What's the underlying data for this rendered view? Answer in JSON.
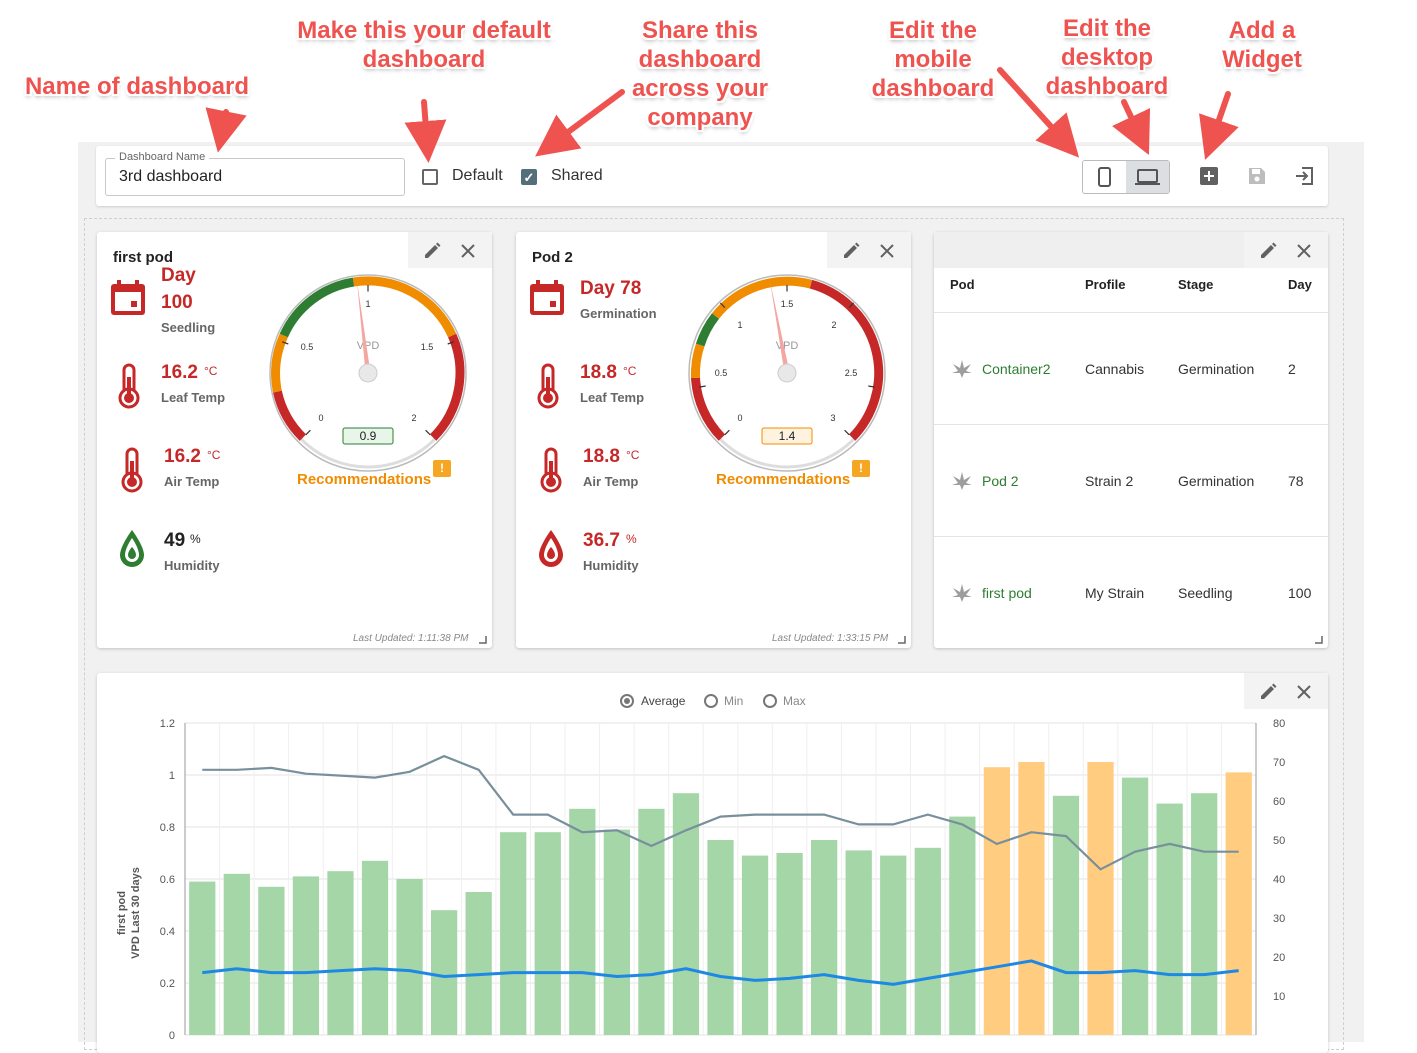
{
  "annotations": {
    "name_of_dashboard": "Name of dashboard",
    "make_default": [
      "Make this your default",
      "dashboard"
    ],
    "share": [
      "Share this",
      "dashboard",
      "across your",
      "company"
    ],
    "edit_mobile": [
      "Edit the",
      "mobile",
      "dashboard"
    ],
    "edit_desktop": [
      "Edit the",
      "desktop",
      "dashboard"
    ],
    "add_widget": [
      "Add a",
      "Widget"
    ]
  },
  "toolbar": {
    "name_label": "Dashboard Name",
    "name_value": "3rd dashboard",
    "default_label": "Default",
    "default_checked": false,
    "shared_label": "Shared",
    "shared_checked": true
  },
  "pods": [
    {
      "title": "first pod",
      "day_label": "Day",
      "day_value": "100",
      "stage": "Seedling",
      "leaf_temp": "16.2",
      "leaf_unit": "°C",
      "leaf_label": "Leaf Temp",
      "air_temp": "16.2",
      "air_unit": "°C",
      "air_label": "Air Temp",
      "humidity": "49",
      "hum_unit": "%",
      "hum_label": "Humidity",
      "gauge_center_label": "VPD",
      "gauge_ticks": [
        "0",
        "0.5",
        "1",
        "1.5",
        "2"
      ],
      "gauge_value": "0.9",
      "recommendations": "Recommendations",
      "updated": "Last Updated: 1:11:38 PM"
    },
    {
      "title": "Pod 2",
      "day_label": "Day 78",
      "stage": "Germination",
      "leaf_temp": "18.8",
      "leaf_unit": "°C",
      "leaf_label": "Leaf Temp",
      "air_temp": "18.8",
      "air_unit": "°C",
      "air_label": "Air Temp",
      "humidity": "36.7",
      "hum_unit": "%",
      "hum_label": "Humidity",
      "gauge_center_label": "VPD",
      "gauge_ticks": [
        "0",
        "0.5",
        "1",
        "1.5",
        "2",
        "2.5",
        "3"
      ],
      "gauge_value": "1.4",
      "recommendations": "Recommendations",
      "updated": "Last Updated: 1:33:15 PM"
    }
  ],
  "table": {
    "headers": [
      "Pod",
      "Profile",
      "Stage",
      "Day"
    ],
    "rows": [
      [
        "Container2",
        "Cannabis",
        "Germination",
        "2"
      ],
      [
        "Pod 2",
        "Strain 2",
        "Germination",
        "78"
      ],
      [
        "first pod",
        "My Strain",
        "Seedling",
        "100"
      ]
    ]
  },
  "chart_options": {
    "average": "Average",
    "min": "Min",
    "max": "Max",
    "selected": "Average"
  },
  "chart_data": {
    "type": "bar",
    "ylabel": [
      "first pod",
      "VPD Last 30 days"
    ],
    "ylim": [
      0,
      1.2
    ],
    "y_ticks": [
      "0",
      "0.2",
      "0.4",
      "0.6",
      "0.8",
      "1",
      "1.2"
    ],
    "y2lim": [
      0,
      80
    ],
    "y2_ticks": [
      "10",
      "20",
      "30",
      "40",
      "50",
      "60",
      "70",
      "80"
    ],
    "grid": true,
    "bars": [
      0.59,
      0.62,
      0.57,
      0.61,
      0.63,
      0.67,
      0.6,
      0.48,
      0.55,
      0.78,
      0.78,
      0.87,
      0.79,
      0.87,
      0.93,
      0.75,
      0.69,
      0.7,
      0.75,
      0.71,
      0.69,
      0.72,
      0.84,
      1.03,
      1.05,
      0.92,
      1.05,
      0.99,
      0.89,
      0.93,
      1.01
    ],
    "bar_colors": [
      "#a5d6a7",
      "#a5d6a7",
      "#a5d6a7",
      "#a5d6a7",
      "#a5d6a7",
      "#a5d6a7",
      "#a5d6a7",
      "#a5d6a7",
      "#a5d6a7",
      "#a5d6a7",
      "#a5d6a7",
      "#a5d6a7",
      "#a5d6a7",
      "#a5d6a7",
      "#a5d6a7",
      "#a5d6a7",
      "#a5d6a7",
      "#a5d6a7",
      "#a5d6a7",
      "#a5d6a7",
      "#a5d6a7",
      "#a5d6a7",
      "#a5d6a7",
      "#ffcc80",
      "#ffcc80",
      "#a5d6a7",
      "#ffcc80",
      "#a5d6a7",
      "#a5d6a7",
      "#a5d6a7",
      "#ffcc80"
    ],
    "series": [
      {
        "color": "#78909c",
        "axis": "right",
        "values": [
          68,
          68,
          68.5,
          67,
          66.5,
          66,
          67.5,
          71.5,
          68,
          56.5,
          56.5,
          52,
          52.5,
          48.5,
          52.5,
          56,
          56.5,
          56.5,
          56.5,
          54,
          54,
          56.5,
          54,
          49,
          52,
          51,
          42.5,
          47,
          49,
          47,
          47
        ]
      },
      {
        "color": "#1e88e5",
        "axis": "right",
        "values": [
          16,
          17,
          16,
          16,
          16.5,
          17,
          16.5,
          15,
          15.5,
          16,
          16,
          16,
          15,
          15.5,
          17,
          15,
          14,
          14.5,
          15.5,
          14,
          13,
          14.5,
          16,
          17.5,
          19,
          16,
          16,
          16.5,
          15.5,
          15.5,
          16.5
        ]
      }
    ]
  }
}
